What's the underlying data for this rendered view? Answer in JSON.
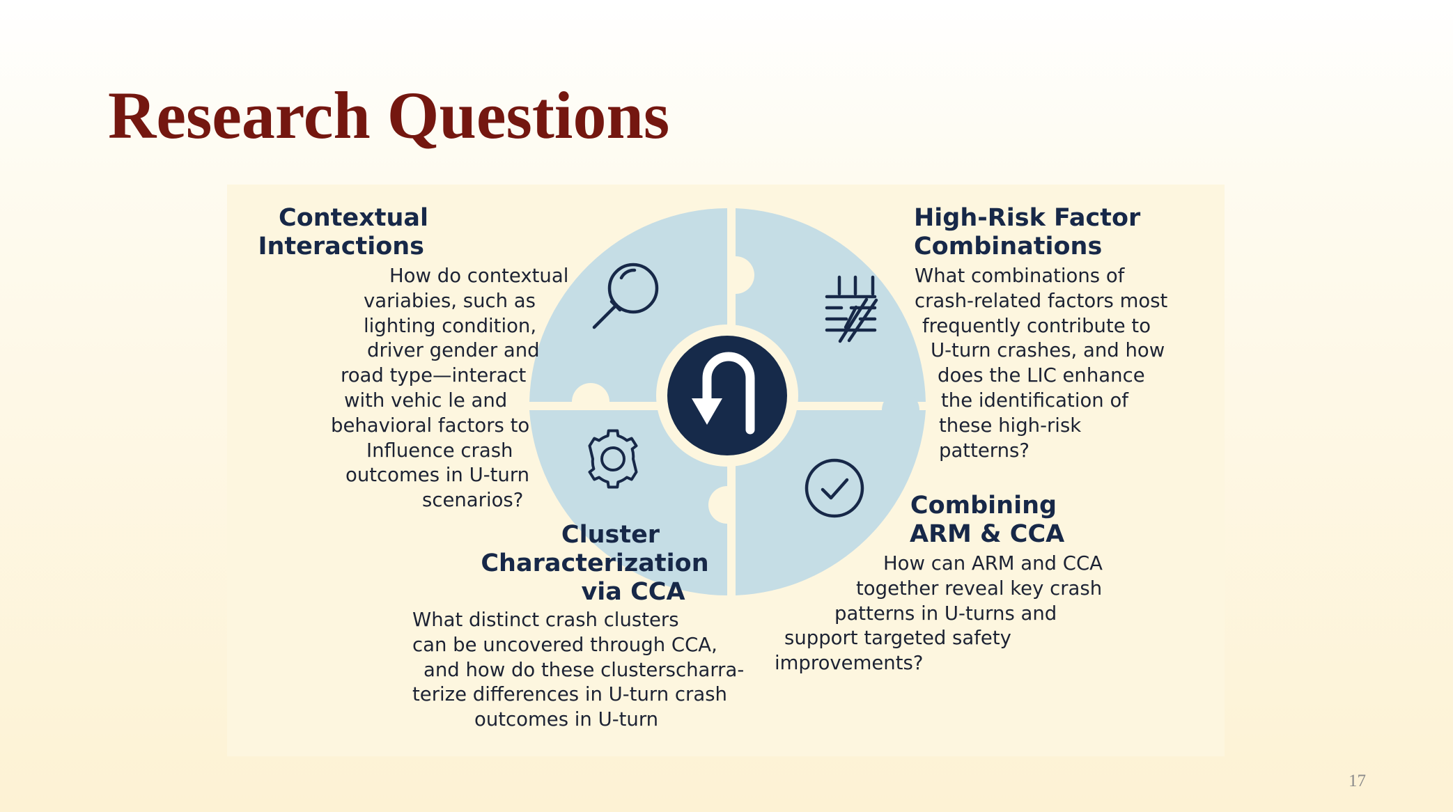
{
  "slide": {
    "title": "Research Questions",
    "page_number": "17"
  },
  "colors": {
    "title": "#741710",
    "panel": "#fdf6df",
    "puzzle": "#c5dde5",
    "hub": "#162a4a",
    "heading": "#172848"
  },
  "diagram": {
    "center_icon": "u-turn-arrow-icon",
    "piece_icons": [
      "magnifying-glass-icon",
      "road-lanes-icon",
      "gear-icon",
      "check-circle-icon"
    ],
    "sections": {
      "contextual": {
        "heading": [
          "Contextual",
          "Interactions"
        ],
        "body": [
          "How do contextual",
          "variabies, such as",
          "lighting condition,",
          "driver gender and",
          "road type—interact",
          "with vehic le  and",
          "behavioral factors to",
          "Influence crash",
          "outcomes in U-turn",
          "scenarios?"
        ]
      },
      "high_risk": {
        "heading": [
          "High-Risk Factor",
          "Combinations"
        ],
        "body": [
          "What combinations of",
          "crash-related factors  most",
          "frequently contribute to",
          "U-turn crashes, and how",
          "does the LIC enhance",
          "the identification of",
          "these high-risk",
          "patterns?"
        ]
      },
      "cluster": {
        "heading": [
          "Cluster",
          "Characterization",
          "via CCA"
        ],
        "body": [
          "What distinct crash clusters",
          "can be uncovered through CCA,",
          "and how do these clusterscharra-",
          "terize differences in U-turn crash",
          "outcomes in U-turn"
        ]
      },
      "combining": {
        "heading": [
          "Combining",
          "ARM & CCA"
        ],
        "body": [
          "How can ARM and CCA",
          "together reveal key crash",
          "patterns in U-turns and",
          "support targeted safety",
          "improvements?"
        ]
      }
    }
  }
}
